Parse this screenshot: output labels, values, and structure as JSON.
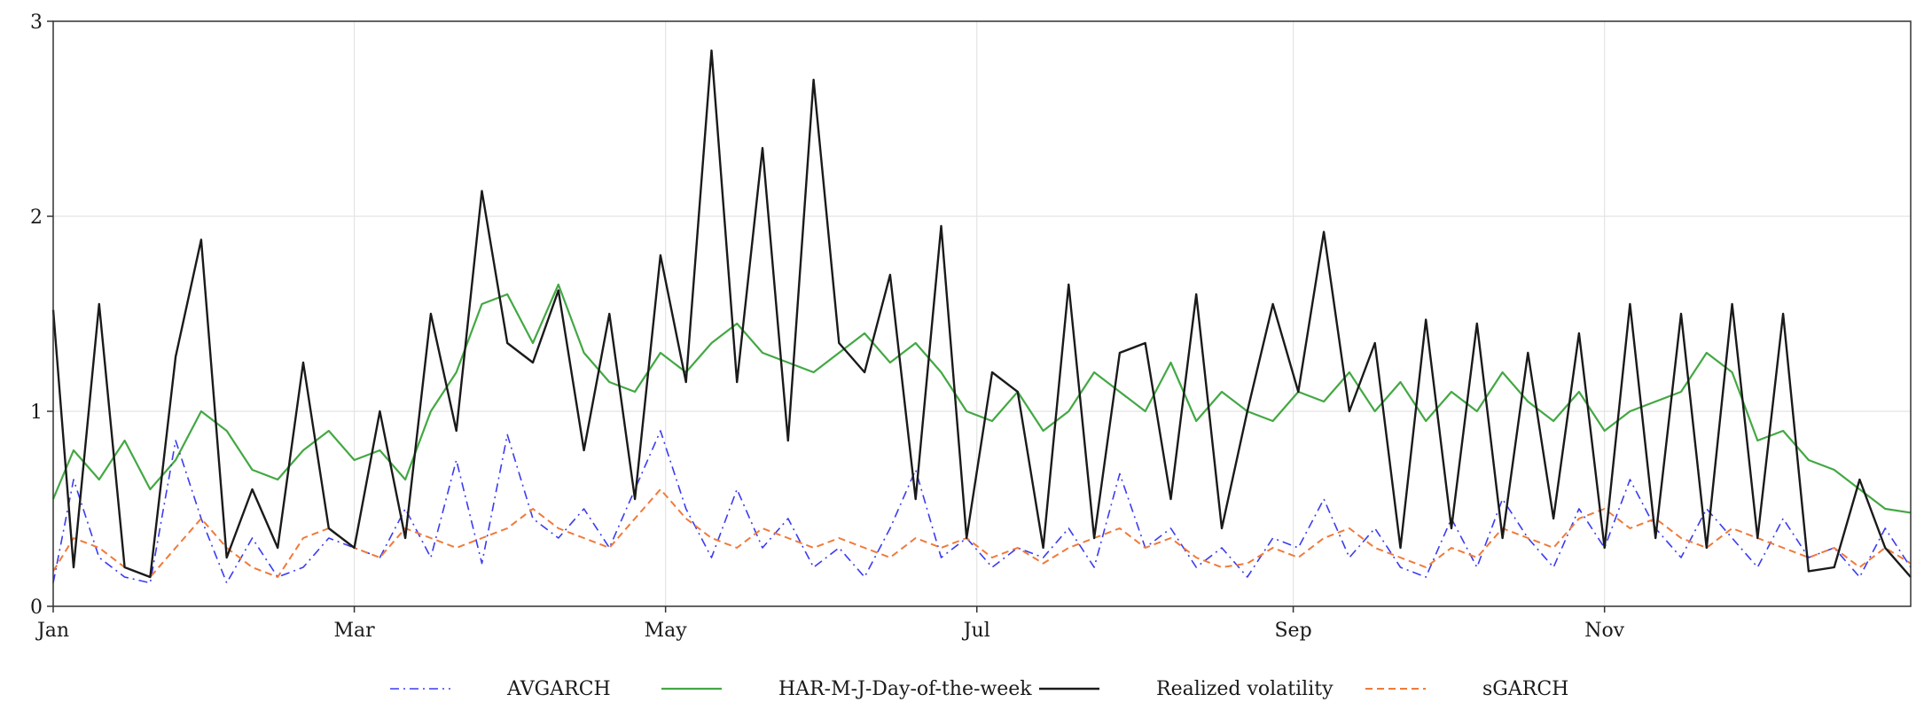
{
  "chart_data": {
    "type": "line",
    "title": "",
    "xlabel": "",
    "ylabel": "",
    "x_ticks": [
      "Jan",
      "Mar",
      "May",
      "Jul",
      "Sep",
      "Nov"
    ],
    "y_ticks": [
      "0",
      "1",
      "2",
      "3"
    ],
    "xlim": [
      "2019-01-01",
      "2019-12-31"
    ],
    "ylim": [
      0,
      3
    ],
    "grid": true,
    "legend_position": "bottom",
    "colors": {
      "avgarch": "#3b3bf0",
      "har": "#43a843",
      "rv": "#1a1a1a",
      "sgarch": "#f07a3a",
      "grid": "#e4e4e4",
      "axis": "#333333"
    },
    "series": [
      {
        "name": "AVGARCH",
        "style": "dashdot",
        "x": [
          "2019-01-01",
          "2019-01-05",
          "2019-01-10",
          "2019-01-15",
          "2019-01-20",
          "2019-01-25",
          "2019-01-30",
          "2019-02-04",
          "2019-02-09",
          "2019-02-14",
          "2019-02-19",
          "2019-02-24",
          "2019-03-01",
          "2019-03-06",
          "2019-03-11",
          "2019-03-16",
          "2019-03-21",
          "2019-03-26",
          "2019-03-31",
          "2019-04-05",
          "2019-04-10",
          "2019-04-15",
          "2019-04-20",
          "2019-04-25",
          "2019-04-30",
          "2019-05-05",
          "2019-05-10",
          "2019-05-15",
          "2019-05-20",
          "2019-05-25",
          "2019-05-30",
          "2019-06-04",
          "2019-06-09",
          "2019-06-14",
          "2019-06-19",
          "2019-06-24",
          "2019-06-29",
          "2019-07-04",
          "2019-07-09",
          "2019-07-14",
          "2019-07-19",
          "2019-07-24",
          "2019-07-29",
          "2019-08-03",
          "2019-08-08",
          "2019-08-13",
          "2019-08-18",
          "2019-08-23",
          "2019-08-28",
          "2019-09-02",
          "2019-09-07",
          "2019-09-12",
          "2019-09-17",
          "2019-09-22",
          "2019-09-27",
          "2019-10-02",
          "2019-10-07",
          "2019-10-12",
          "2019-10-17",
          "2019-10-22",
          "2019-10-27",
          "2019-11-01",
          "2019-11-06",
          "2019-11-11",
          "2019-11-16",
          "2019-11-21",
          "2019-11-26",
          "2019-12-01",
          "2019-12-06",
          "2019-12-11",
          "2019-12-16",
          "2019-12-21",
          "2019-12-26",
          "2019-12-31"
        ],
        "values": [
          0.12,
          0.65,
          0.25,
          0.15,
          0.12,
          0.85,
          0.45,
          0.12,
          0.35,
          0.15,
          0.2,
          0.35,
          0.3,
          0.25,
          0.5,
          0.25,
          0.75,
          0.22,
          0.88,
          0.45,
          0.35,
          0.5,
          0.3,
          0.6,
          0.9,
          0.5,
          0.25,
          0.6,
          0.3,
          0.45,
          0.2,
          0.3,
          0.15,
          0.4,
          0.7,
          0.25,
          0.35,
          0.2,
          0.3,
          0.25,
          0.4,
          0.2,
          0.68,
          0.3,
          0.4,
          0.2,
          0.3,
          0.15,
          0.35,
          0.3,
          0.55,
          0.25,
          0.4,
          0.2,
          0.15,
          0.45,
          0.2,
          0.55,
          0.35,
          0.2,
          0.5,
          0.3,
          0.65,
          0.4,
          0.25,
          0.5,
          0.35,
          0.2,
          0.45,
          0.25,
          0.3,
          0.15,
          0.4,
          0.2
        ]
      },
      {
        "name": "HAR-M-J-Day-of-the-week",
        "style": "solid",
        "x": [
          "2019-01-01",
          "2019-01-05",
          "2019-01-10",
          "2019-01-15",
          "2019-01-20",
          "2019-01-25",
          "2019-01-30",
          "2019-02-04",
          "2019-02-09",
          "2019-02-14",
          "2019-02-19",
          "2019-02-24",
          "2019-03-01",
          "2019-03-06",
          "2019-03-11",
          "2019-03-16",
          "2019-03-21",
          "2019-03-26",
          "2019-03-31",
          "2019-04-05",
          "2019-04-10",
          "2019-04-15",
          "2019-04-20",
          "2019-04-25",
          "2019-04-30",
          "2019-05-05",
          "2019-05-10",
          "2019-05-15",
          "2019-05-20",
          "2019-05-25",
          "2019-05-30",
          "2019-06-04",
          "2019-06-09",
          "2019-06-14",
          "2019-06-19",
          "2019-06-24",
          "2019-06-29",
          "2019-07-04",
          "2019-07-09",
          "2019-07-14",
          "2019-07-19",
          "2019-07-24",
          "2019-07-29",
          "2019-08-03",
          "2019-08-08",
          "2019-08-13",
          "2019-08-18",
          "2019-08-23",
          "2019-08-28",
          "2019-09-02",
          "2019-09-07",
          "2019-09-12",
          "2019-09-17",
          "2019-09-22",
          "2019-09-27",
          "2019-10-02",
          "2019-10-07",
          "2019-10-12",
          "2019-10-17",
          "2019-10-22",
          "2019-10-27",
          "2019-11-01",
          "2019-11-06",
          "2019-11-11",
          "2019-11-16",
          "2019-11-21",
          "2019-11-26",
          "2019-12-01",
          "2019-12-06",
          "2019-12-11",
          "2019-12-16",
          "2019-12-21",
          "2019-12-26",
          "2019-12-31"
        ],
        "values": [
          0.55,
          0.8,
          0.65,
          0.85,
          0.6,
          0.75,
          1.0,
          0.9,
          0.7,
          0.65,
          0.8,
          0.9,
          0.75,
          0.8,
          0.65,
          1.0,
          1.2,
          1.55,
          1.6,
          1.35,
          1.65,
          1.3,
          1.15,
          1.1,
          1.3,
          1.2,
          1.35,
          1.45,
          1.3,
          1.25,
          1.2,
          1.3,
          1.4,
          1.25,
          1.35,
          1.2,
          1.0,
          0.95,
          1.1,
          0.9,
          1.0,
          1.2,
          1.1,
          1.0,
          1.25,
          0.95,
          1.1,
          1.0,
          0.95,
          1.1,
          1.05,
          1.2,
          1.0,
          1.15,
          0.95,
          1.1,
          1.0,
          1.2,
          1.05,
          0.95,
          1.1,
          0.9,
          1.0,
          1.05,
          1.1,
          1.3,
          1.2,
          0.85,
          0.9,
          0.75,
          0.7,
          0.6,
          0.5,
          0.48
        ]
      },
      {
        "name": "Realized volatility",
        "style": "solid",
        "x": [
          "2019-01-01",
          "2019-01-05",
          "2019-01-10",
          "2019-01-15",
          "2019-01-20",
          "2019-01-25",
          "2019-01-30",
          "2019-02-04",
          "2019-02-09",
          "2019-02-14",
          "2019-02-19",
          "2019-02-24",
          "2019-03-01",
          "2019-03-06",
          "2019-03-11",
          "2019-03-16",
          "2019-03-21",
          "2019-03-26",
          "2019-03-31",
          "2019-04-05",
          "2019-04-10",
          "2019-04-15",
          "2019-04-20",
          "2019-04-25",
          "2019-04-30",
          "2019-05-05",
          "2019-05-10",
          "2019-05-15",
          "2019-05-20",
          "2019-05-25",
          "2019-05-30",
          "2019-06-04",
          "2019-06-09",
          "2019-06-14",
          "2019-06-19",
          "2019-06-24",
          "2019-06-29",
          "2019-07-04",
          "2019-07-09",
          "2019-07-14",
          "2019-07-19",
          "2019-07-24",
          "2019-07-29",
          "2019-08-03",
          "2019-08-08",
          "2019-08-13",
          "2019-08-18",
          "2019-08-23",
          "2019-08-28",
          "2019-09-02",
          "2019-09-07",
          "2019-09-12",
          "2019-09-17",
          "2019-09-22",
          "2019-09-27",
          "2019-10-02",
          "2019-10-07",
          "2019-10-12",
          "2019-10-17",
          "2019-10-22",
          "2019-10-27",
          "2019-11-01",
          "2019-11-06",
          "2019-11-11",
          "2019-11-16",
          "2019-11-21",
          "2019-11-26",
          "2019-12-01",
          "2019-12-06",
          "2019-12-11",
          "2019-12-16",
          "2019-12-21",
          "2019-12-26",
          "2019-12-31"
        ],
        "values": [
          1.52,
          0.2,
          1.55,
          0.2,
          0.15,
          1.28,
          1.88,
          0.25,
          0.6,
          0.3,
          1.25,
          0.4,
          0.3,
          1.0,
          0.35,
          1.5,
          0.9,
          2.13,
          1.35,
          1.25,
          1.62,
          0.8,
          1.5,
          0.55,
          1.8,
          1.15,
          2.85,
          1.15,
          2.35,
          0.85,
          2.7,
          1.35,
          1.2,
          1.7,
          0.55,
          1.95,
          0.35,
          1.2,
          1.1,
          0.3,
          1.65,
          0.35,
          1.3,
          1.35,
          0.55,
          1.6,
          0.4,
          1.0,
          1.55,
          1.1,
          1.92,
          1.0,
          1.35,
          0.3,
          1.47,
          0.4,
          1.45,
          0.35,
          1.3,
          0.45,
          1.4,
          0.3,
          1.55,
          0.35,
          1.5,
          0.3,
          1.55,
          0.35,
          1.5,
          0.18,
          0.2,
          0.65,
          0.3,
          0.15
        ]
      },
      {
        "name": "sGARCH",
        "style": "dashed",
        "x": [
          "2019-01-01",
          "2019-01-05",
          "2019-01-10",
          "2019-01-15",
          "2019-01-20",
          "2019-01-25",
          "2019-01-30",
          "2019-02-04",
          "2019-02-09",
          "2019-02-14",
          "2019-02-19",
          "2019-02-24",
          "2019-03-01",
          "2019-03-06",
          "2019-03-11",
          "2019-03-16",
          "2019-03-21",
          "2019-03-26",
          "2019-03-31",
          "2019-04-05",
          "2019-04-10",
          "2019-04-15",
          "2019-04-20",
          "2019-04-25",
          "2019-04-30",
          "2019-05-05",
          "2019-05-10",
          "2019-05-15",
          "2019-05-20",
          "2019-05-25",
          "2019-05-30",
          "2019-06-04",
          "2019-06-09",
          "2019-06-14",
          "2019-06-19",
          "2019-06-24",
          "2019-06-29",
          "2019-07-04",
          "2019-07-09",
          "2019-07-14",
          "2019-07-19",
          "2019-07-24",
          "2019-07-29",
          "2019-08-03",
          "2019-08-08",
          "2019-08-13",
          "2019-08-18",
          "2019-08-23",
          "2019-08-28",
          "2019-09-02",
          "2019-09-07",
          "2019-09-12",
          "2019-09-17",
          "2019-09-22",
          "2019-09-27",
          "2019-10-02",
          "2019-10-07",
          "2019-10-12",
          "2019-10-17",
          "2019-10-22",
          "2019-10-27",
          "2019-11-01",
          "2019-11-06",
          "2019-11-11",
          "2019-11-16",
          "2019-11-21",
          "2019-11-26",
          "2019-12-01",
          "2019-12-06",
          "2019-12-11",
          "2019-12-16",
          "2019-12-21",
          "2019-12-26",
          "2019-12-31"
        ],
        "values": [
          0.18,
          0.35,
          0.3,
          0.2,
          0.15,
          0.3,
          0.45,
          0.3,
          0.2,
          0.15,
          0.35,
          0.4,
          0.3,
          0.25,
          0.4,
          0.35,
          0.3,
          0.35,
          0.4,
          0.5,
          0.4,
          0.35,
          0.3,
          0.45,
          0.6,
          0.45,
          0.35,
          0.3,
          0.4,
          0.35,
          0.3,
          0.35,
          0.3,
          0.25,
          0.35,
          0.3,
          0.35,
          0.25,
          0.3,
          0.22,
          0.3,
          0.35,
          0.4,
          0.3,
          0.35,
          0.25,
          0.2,
          0.22,
          0.3,
          0.25,
          0.35,
          0.4,
          0.3,
          0.25,
          0.2,
          0.3,
          0.25,
          0.4,
          0.35,
          0.3,
          0.45,
          0.5,
          0.4,
          0.45,
          0.35,
          0.3,
          0.4,
          0.35,
          0.3,
          0.25,
          0.3,
          0.2,
          0.3,
          0.22
        ]
      }
    ]
  }
}
